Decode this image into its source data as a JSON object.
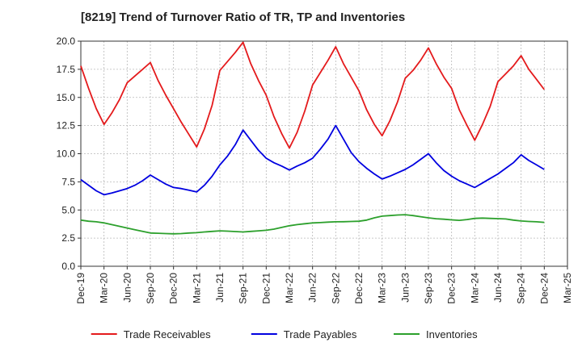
{
  "chart_data": {
    "type": "line",
    "title": "[8219]  Trend of Turnover Ratio of TR, TP and Inventories",
    "xlabel": "",
    "ylabel": "",
    "ylim": [
      0,
      20
    ],
    "yticks": [
      "0.0",
      "2.5",
      "5.0",
      "7.5",
      "10.0",
      "12.5",
      "15.0",
      "17.5",
      "20.0"
    ],
    "x_start": "Dec-19",
    "x_ticks": [
      "Dec-19",
      "Mar-20",
      "Jun-20",
      "Sep-20",
      "Dec-20",
      "Mar-21",
      "Jun-21",
      "Sep-21",
      "Dec-21",
      "Mar-22",
      "Jun-22",
      "Sep-22",
      "Dec-22",
      "Mar-23",
      "Jun-23",
      "Sep-23",
      "Dec-23",
      "Mar-24",
      "Jun-24",
      "Sep-24",
      "Dec-24",
      "Mar-25"
    ],
    "grid": true,
    "legend_position": "bottom",
    "series": [
      {
        "name": "Trade Receivables",
        "color": "#e41a1c",
        "values": [
          17.8,
          15.8,
          14.0,
          12.6,
          13.6,
          14.8,
          16.3,
          16.9,
          17.5,
          18.1,
          16.5,
          15.2,
          14.0,
          12.8,
          11.7,
          10.6,
          12.2,
          14.3,
          17.4,
          18.2,
          19.0,
          19.9,
          18.0,
          16.5,
          15.2,
          13.3,
          11.8,
          10.5,
          11.9,
          13.8,
          16.1,
          17.2,
          18.3,
          19.5,
          18.0,
          16.8,
          15.6,
          13.9,
          12.6,
          11.6,
          12.9,
          14.6,
          16.7,
          17.4,
          18.3,
          19.4,
          18.0,
          16.8,
          15.8,
          13.9,
          12.5,
          11.2,
          12.6,
          14.2,
          16.4,
          17.1,
          17.8,
          18.7,
          17.5,
          16.6,
          15.7
        ]
      },
      {
        "name": "Trade Payables",
        "color": "#0000e0",
        "values": [
          7.7,
          7.2,
          6.7,
          6.35,
          6.5,
          6.7,
          6.9,
          7.2,
          7.6,
          8.1,
          7.7,
          7.3,
          7.0,
          6.9,
          6.75,
          6.6,
          7.2,
          8.0,
          9.0,
          9.8,
          10.8,
          12.1,
          11.2,
          10.3,
          9.6,
          9.2,
          8.9,
          8.55,
          8.9,
          9.2,
          9.6,
          10.4,
          11.3,
          12.5,
          11.3,
          10.1,
          9.3,
          8.7,
          8.2,
          7.75,
          8.0,
          8.3,
          8.6,
          9.0,
          9.5,
          10.0,
          9.2,
          8.5,
          8.0,
          7.6,
          7.3,
          7.0,
          7.4,
          7.8,
          8.2,
          8.7,
          9.2,
          9.9,
          9.4,
          9.0,
          8.6
        ]
      },
      {
        "name": "Inventories",
        "color": "#2ca02c",
        "values": [
          4.1,
          4.0,
          3.95,
          3.85,
          3.7,
          3.55,
          3.4,
          3.25,
          3.1,
          2.95,
          2.93,
          2.9,
          2.88,
          2.9,
          2.95,
          2.98,
          3.05,
          3.1,
          3.15,
          3.12,
          3.08,
          3.05,
          3.1,
          3.15,
          3.2,
          3.3,
          3.45,
          3.6,
          3.7,
          3.78,
          3.85,
          3.88,
          3.92,
          3.95,
          3.96,
          3.98,
          4.0,
          4.1,
          4.3,
          4.45,
          4.5,
          4.55,
          4.58,
          4.5,
          4.4,
          4.3,
          4.22,
          4.18,
          4.12,
          4.08,
          4.15,
          4.25,
          4.28,
          4.25,
          4.23,
          4.2,
          4.1,
          4.02,
          3.98,
          3.95,
          3.9
        ]
      }
    ]
  }
}
